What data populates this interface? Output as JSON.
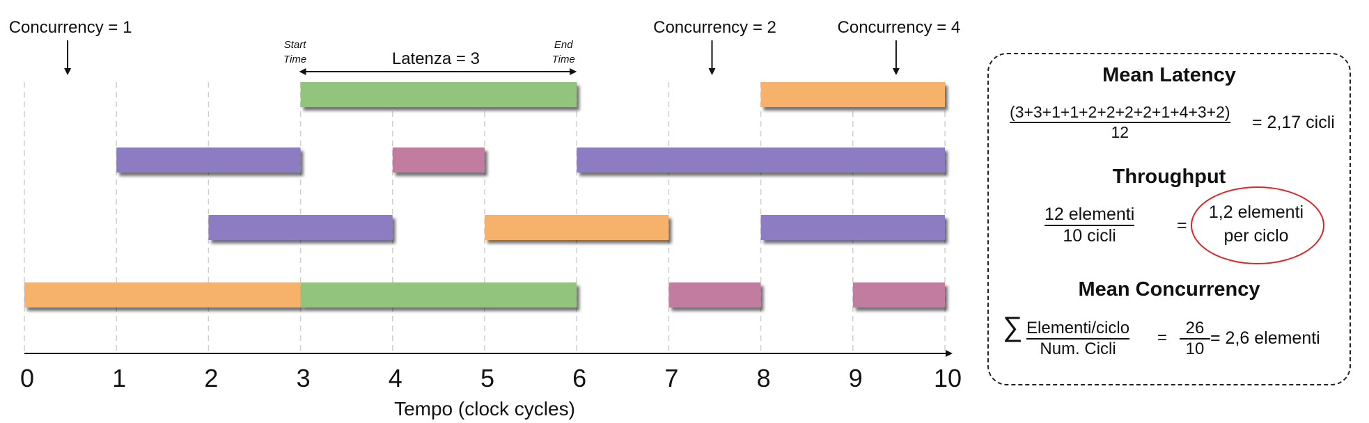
{
  "timeline": {
    "ticks": [
      "0",
      "1",
      "2",
      "3",
      "4",
      "5",
      "6",
      "7",
      "8",
      "9",
      "10"
    ],
    "axis_label": "Tempo (clock cycles)",
    "concurrency_markers": [
      {
        "label": "Concurrency = 1",
        "at": 0.5
      },
      {
        "label": "Concurrency = 2",
        "at": 7.5
      },
      {
        "label": "Concurrency = 4",
        "at": 9.5
      }
    ],
    "latency": {
      "label": "Latenza = 3",
      "start_label_line1": "Start",
      "start_label_line2": "Time",
      "end_label_line1": "End",
      "end_label_line2": "Time",
      "from": 3,
      "to": 6
    },
    "colors": {
      "green": "#93c47d",
      "purple": "#8e7cc3",
      "orange": "#f6b26b",
      "pink": "#c27ba0"
    },
    "rows": [
      [
        {
          "start": 3,
          "end": 6,
          "color": "green"
        },
        {
          "start": 8,
          "end": 10,
          "color": "orange"
        }
      ],
      [
        {
          "start": 1,
          "end": 3,
          "color": "purple"
        },
        {
          "start": 4,
          "end": 5,
          "color": "pink"
        },
        {
          "start": 6,
          "end": 10,
          "color": "purple"
        }
      ],
      [
        {
          "start": 2,
          "end": 4,
          "color": "purple"
        },
        {
          "start": 5,
          "end": 7,
          "color": "orange"
        },
        {
          "start": 8,
          "end": 10,
          "color": "purple"
        }
      ],
      [
        {
          "start": 0,
          "end": 3,
          "color": "orange"
        },
        {
          "start": 3,
          "end": 6,
          "color": "green"
        },
        {
          "start": 7,
          "end": 8,
          "color": "pink"
        },
        {
          "start": 9,
          "end": 10,
          "color": "pink"
        }
      ]
    ]
  },
  "panel": {
    "mean_latency": {
      "title": "Mean Latency",
      "numerator": "(3+3+1+1+2+2+2+2+1+4+3+2)",
      "denominator": "12",
      "result": "= 2,17 cicli"
    },
    "throughput": {
      "title": "Throughput",
      "numerator": "12 elementi",
      "denominator": "10 cicli",
      "equals": "=",
      "result_line1": "1,2 elementi",
      "result_line2": "per ciclo"
    },
    "mean_concurrency": {
      "title": "Mean Concurrency",
      "sigma": "∑",
      "numerator": "Elementi/ciclo",
      "denominator": "Num. Cicli",
      "equals1": "=",
      "value_numerator": "26",
      "value_denominator": "10",
      "result": "= 2,6 elementi"
    }
  }
}
